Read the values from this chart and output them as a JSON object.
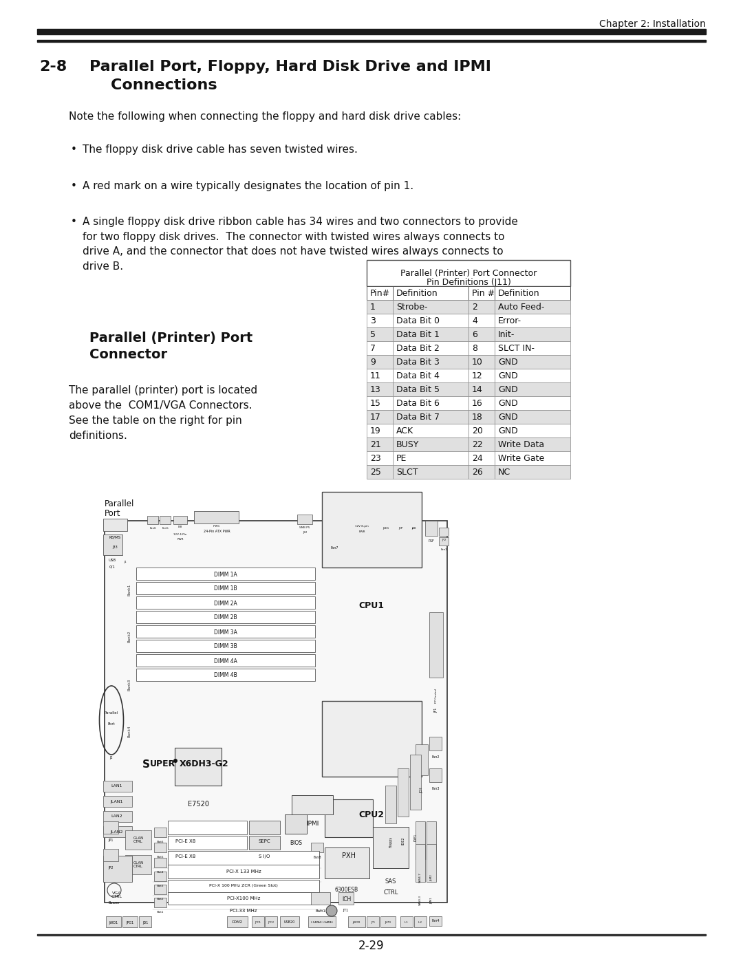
{
  "page_title": "Chapter 2: Installation",
  "section_number": "2-8",
  "section_title_line1": "Parallel Port, Floppy, Hard Disk Drive and IPMI",
  "section_title_line2": "    Connections",
  "body_text": "Note the following when connecting the floppy and hard disk drive cables:",
  "bullets": [
    "The floppy disk drive cable has seven twisted wires.",
    "A red mark on a wire typically designates the location of pin 1.",
    "A single floppy disk drive ribbon cable has 34 wires and two connectors to provide\nfor two floppy disk drives.  The connector with twisted wires always connects to\ndrive A, and the connector that does not have twisted wires always connects to\ndrive B."
  ],
  "table_title_line1": "Parallel (Printer) Port Connector",
  "table_title_line2": "Pin Definitions (J11)",
  "table_headers": [
    "Pin#",
    "Definition",
    "Pin #",
    "Definition"
  ],
  "table_rows": [
    [
      "1",
      "Strobe-",
      "2",
      "Auto Feed-"
    ],
    [
      "3",
      "Data Bit 0",
      "4",
      "Error-"
    ],
    [
      "5",
      "Data Bit 1",
      "6",
      "Init-"
    ],
    [
      "7",
      "Data Bit 2",
      "8",
      "SLCT IN-"
    ],
    [
      "9",
      "Data Bit 3",
      "10",
      "GND"
    ],
    [
      "11",
      "Data Bit 4",
      "12",
      "GND"
    ],
    [
      "13",
      "Data Bit 5",
      "14",
      "GND"
    ],
    [
      "15",
      "Data Bit 6",
      "16",
      "GND"
    ],
    [
      "17",
      "Data Bit 7",
      "18",
      "GND"
    ],
    [
      "19",
      "ACK",
      "20",
      "GND"
    ],
    [
      "21",
      "BUSY",
      "22",
      "Write Data"
    ],
    [
      "23",
      "PE",
      "24",
      "Write Gate"
    ],
    [
      "25",
      "SLCT",
      "26",
      "NC"
    ]
  ],
  "left_section_title_line1": "Parallel (Printer) Port",
  "left_section_title_line2": "Connector",
  "left_body_text_lines": [
    "The parallel (printer) port is located",
    "above the  COM1/VGA Connectors.",
    "See the table on the right for pin",
    "definitions."
  ],
  "parallel_label1": "Parallel",
  "parallel_label2": "Port",
  "page_number": "2-29",
  "bg_color": "#ffffff",
  "header_line_color": "#1a1a1a",
  "table_row_shaded": "#e0e0e0",
  "table_row_white": "#ffffff",
  "table_border_color": "#888888",
  "text_color": "#111111"
}
